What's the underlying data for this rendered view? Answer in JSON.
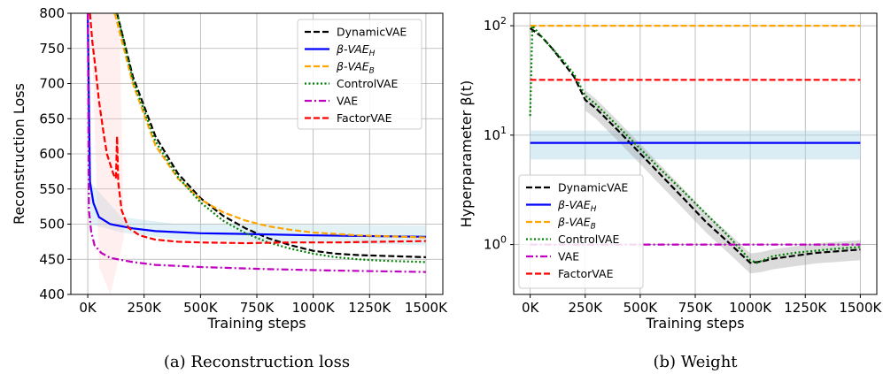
{
  "chart_data": [
    {
      "type": "line",
      "caption": "(a) Reconstruction loss",
      "xlabel": "Training steps",
      "ylabel": "Reconstruction Loss",
      "xlim": [
        0,
        1500000
      ],
      "ylim": [
        400,
        800
      ],
      "xticks": [
        0,
        250000,
        500000,
        750000,
        1000000,
        1250000,
        1500000
      ],
      "xtick_labels": [
        "0K",
        "250K",
        "500K",
        "750K",
        "1000K",
        "1250K",
        "1500K"
      ],
      "yticks": [
        400,
        450,
        500,
        550,
        600,
        650,
        700,
        750,
        800
      ],
      "ytick_labels": [
        "400",
        "450",
        "500",
        "550",
        "600",
        "650",
        "700",
        "750",
        "800"
      ],
      "grid": true,
      "legend_position": "top-right",
      "series": [
        {
          "name": "DynamicVAE",
          "color": "#000000",
          "style": "dashed",
          "points": [
            [
              130000,
              800
            ],
            [
              200000,
              710
            ],
            [
              300000,
              625
            ],
            [
              400000,
              572
            ],
            [
              500000,
              537
            ],
            [
              600000,
              512
            ],
            [
              700000,
              494
            ],
            [
              800000,
              480
            ],
            [
              900000,
              470
            ],
            [
              1000000,
              462
            ],
            [
              1100000,
              458
            ],
            [
              1200000,
              456
            ],
            [
              1300000,
              455
            ],
            [
              1400000,
              454
            ],
            [
              1500000,
              453
            ]
          ]
        },
        {
          "name": "β-VAE_H",
          "color": "#0000ff",
          "style": "solid",
          "points": [
            [
              0,
              800
            ],
            [
              10000,
              560
            ],
            [
              25000,
              530
            ],
            [
              50000,
              510
            ],
            [
              100000,
              500
            ],
            [
              200000,
              494
            ],
            [
              300000,
              490
            ],
            [
              500000,
              487
            ],
            [
              700000,
              486
            ],
            [
              1000000,
              484
            ],
            [
              1500000,
              482
            ]
          ]
        },
        {
          "name": "β-VAE_B",
          "color": "#ffa500",
          "style": "dashed",
          "points": [
            [
              120000,
              800
            ],
            [
              200000,
              700
            ],
            [
              300000,
              612
            ],
            [
              400000,
              565
            ],
            [
              500000,
              535
            ],
            [
              600000,
              517
            ],
            [
              700000,
              505
            ],
            [
              800000,
              497
            ],
            [
              900000,
              492
            ],
            [
              1000000,
              488
            ],
            [
              1200000,
              484
            ],
            [
              1500000,
              481
            ]
          ]
        },
        {
          "name": "ControlVAE",
          "color": "#008000",
          "style": "dotted",
          "points": [
            [
              130000,
              800
            ],
            [
              200000,
              705
            ],
            [
              300000,
              618
            ],
            [
              400000,
              567
            ],
            [
              500000,
              531
            ],
            [
              600000,
              505
            ],
            [
              700000,
              487
            ],
            [
              800000,
              474
            ],
            [
              900000,
              465
            ],
            [
              1000000,
              458
            ],
            [
              1100000,
              453
            ],
            [
              1200000,
              450
            ],
            [
              1300000,
              448
            ],
            [
              1400000,
              447
            ],
            [
              1500000,
              446
            ]
          ]
        },
        {
          "name": "VAE",
          "color": "#bf00bf",
          "style": "dashdot",
          "points": [
            [
              0,
              800
            ],
            [
              5000,
              520
            ],
            [
              15000,
              490
            ],
            [
              30000,
              470
            ],
            [
              60000,
              459
            ],
            [
              100000,
              452
            ],
            [
              200000,
              446
            ],
            [
              300000,
              442
            ],
            [
              500000,
              439
            ],
            [
              800000,
              436
            ],
            [
              1100000,
              434
            ],
            [
              1500000,
              432
            ]
          ]
        },
        {
          "name": "FactorVAE",
          "color": "#ff0000",
          "style": "dashed",
          "points": [
            [
              10000,
              800
            ],
            [
              20000,
              760
            ],
            [
              35000,
              720
            ],
            [
              50000,
              675
            ],
            [
              70000,
              630
            ],
            [
              85000,
              600
            ],
            [
              100000,
              585
            ],
            [
              115000,
              570
            ],
            [
              125000,
              565
            ],
            [
              130000,
              625
            ],
            [
              135000,
              560
            ],
            [
              150000,
              520
            ],
            [
              180000,
              495
            ],
            [
              230000,
              484
            ],
            [
              300000,
              478
            ],
            [
              400000,
              475
            ],
            [
              500000,
              474
            ],
            [
              700000,
              473
            ],
            [
              900000,
              474
            ],
            [
              1100000,
              474
            ],
            [
              1300000,
              475
            ],
            [
              1500000,
              476
            ]
          ]
        }
      ]
    },
    {
      "type": "line",
      "caption": "(b) Weight",
      "xlabel": "Training steps",
      "ylabel": "Hyperparameter β(t)",
      "xlim": [
        0,
        1500000
      ],
      "ylim": [
        0.35,
        130
      ],
      "yscale": "log",
      "xticks": [
        0,
        250000,
        500000,
        750000,
        1000000,
        1250000,
        1500000
      ],
      "xtick_labels": [
        "0K",
        "250K",
        "500K",
        "750K",
        "1000K",
        "1250K",
        "1500K"
      ],
      "yticks": [
        1,
        10,
        100
      ],
      "ytick_labels": [
        "10^0",
        "10^1",
        "10^2"
      ],
      "grid": true,
      "legend_position": "bottom-left",
      "series": [
        {
          "name": "DynamicVAE",
          "color": "#000000",
          "style": "dashed",
          "points": [
            [
              0,
              95
            ],
            [
              50000,
              80
            ],
            [
              100000,
              62
            ],
            [
              150000,
              46
            ],
            [
              200000,
              34
            ],
            [
              250000,
              21
            ],
            [
              300000,
              17.5
            ],
            [
              400000,
              11
            ],
            [
              500000,
              6.8
            ],
            [
              600000,
              4.2
            ],
            [
              700000,
              2.6
            ],
            [
              800000,
              1.6
            ],
            [
              900000,
              1.05
            ],
            [
              1000000,
              0.68
            ],
            [
              1050000,
              0.7
            ],
            [
              1100000,
              0.74
            ],
            [
              1200000,
              0.79
            ],
            [
              1300000,
              0.84
            ],
            [
              1400000,
              0.87
            ],
            [
              1500000,
              0.9
            ]
          ]
        },
        {
          "name": "β-VAE_H",
          "color": "#0000ff",
          "style": "solid",
          "points": [
            [
              0,
              8.5
            ],
            [
              1500000,
              8.5
            ]
          ]
        },
        {
          "name": "β-VAE_B",
          "color": "#ffa500",
          "style": "dashed",
          "points": [
            [
              0,
              100
            ],
            [
              1500000,
              100
            ]
          ]
        },
        {
          "name": "ControlVAE",
          "color": "#008000",
          "style": "dotted",
          "points": [
            [
              0,
              15
            ],
            [
              10000,
              100
            ],
            [
              50000,
              80
            ],
            [
              100000,
              62
            ],
            [
              150000,
              48
            ],
            [
              200000,
              36
            ],
            [
              250000,
              23
            ],
            [
              300000,
              19
            ],
            [
              400000,
              12
            ],
            [
              500000,
              7.5
            ],
            [
              600000,
              4.7
            ],
            [
              700000,
              3.0
            ],
            [
              800000,
              1.9
            ],
            [
              900000,
              1.2
            ],
            [
              1000000,
              0.72
            ],
            [
              1030000,
              0.68
            ],
            [
              1100000,
              0.78
            ],
            [
              1200000,
              0.84
            ],
            [
              1300000,
              0.88
            ],
            [
              1400000,
              0.92
            ],
            [
              1500000,
              0.95
            ]
          ]
        },
        {
          "name": "VAE",
          "color": "#bf00bf",
          "style": "dashdot",
          "points": [
            [
              0,
              1
            ],
            [
              1500000,
              1
            ]
          ]
        },
        {
          "name": "FactorVAE",
          "color": "#ff0000",
          "style": "dashed",
          "points": [
            [
              0,
              32
            ],
            [
              1500000,
              32
            ]
          ]
        }
      ]
    }
  ]
}
